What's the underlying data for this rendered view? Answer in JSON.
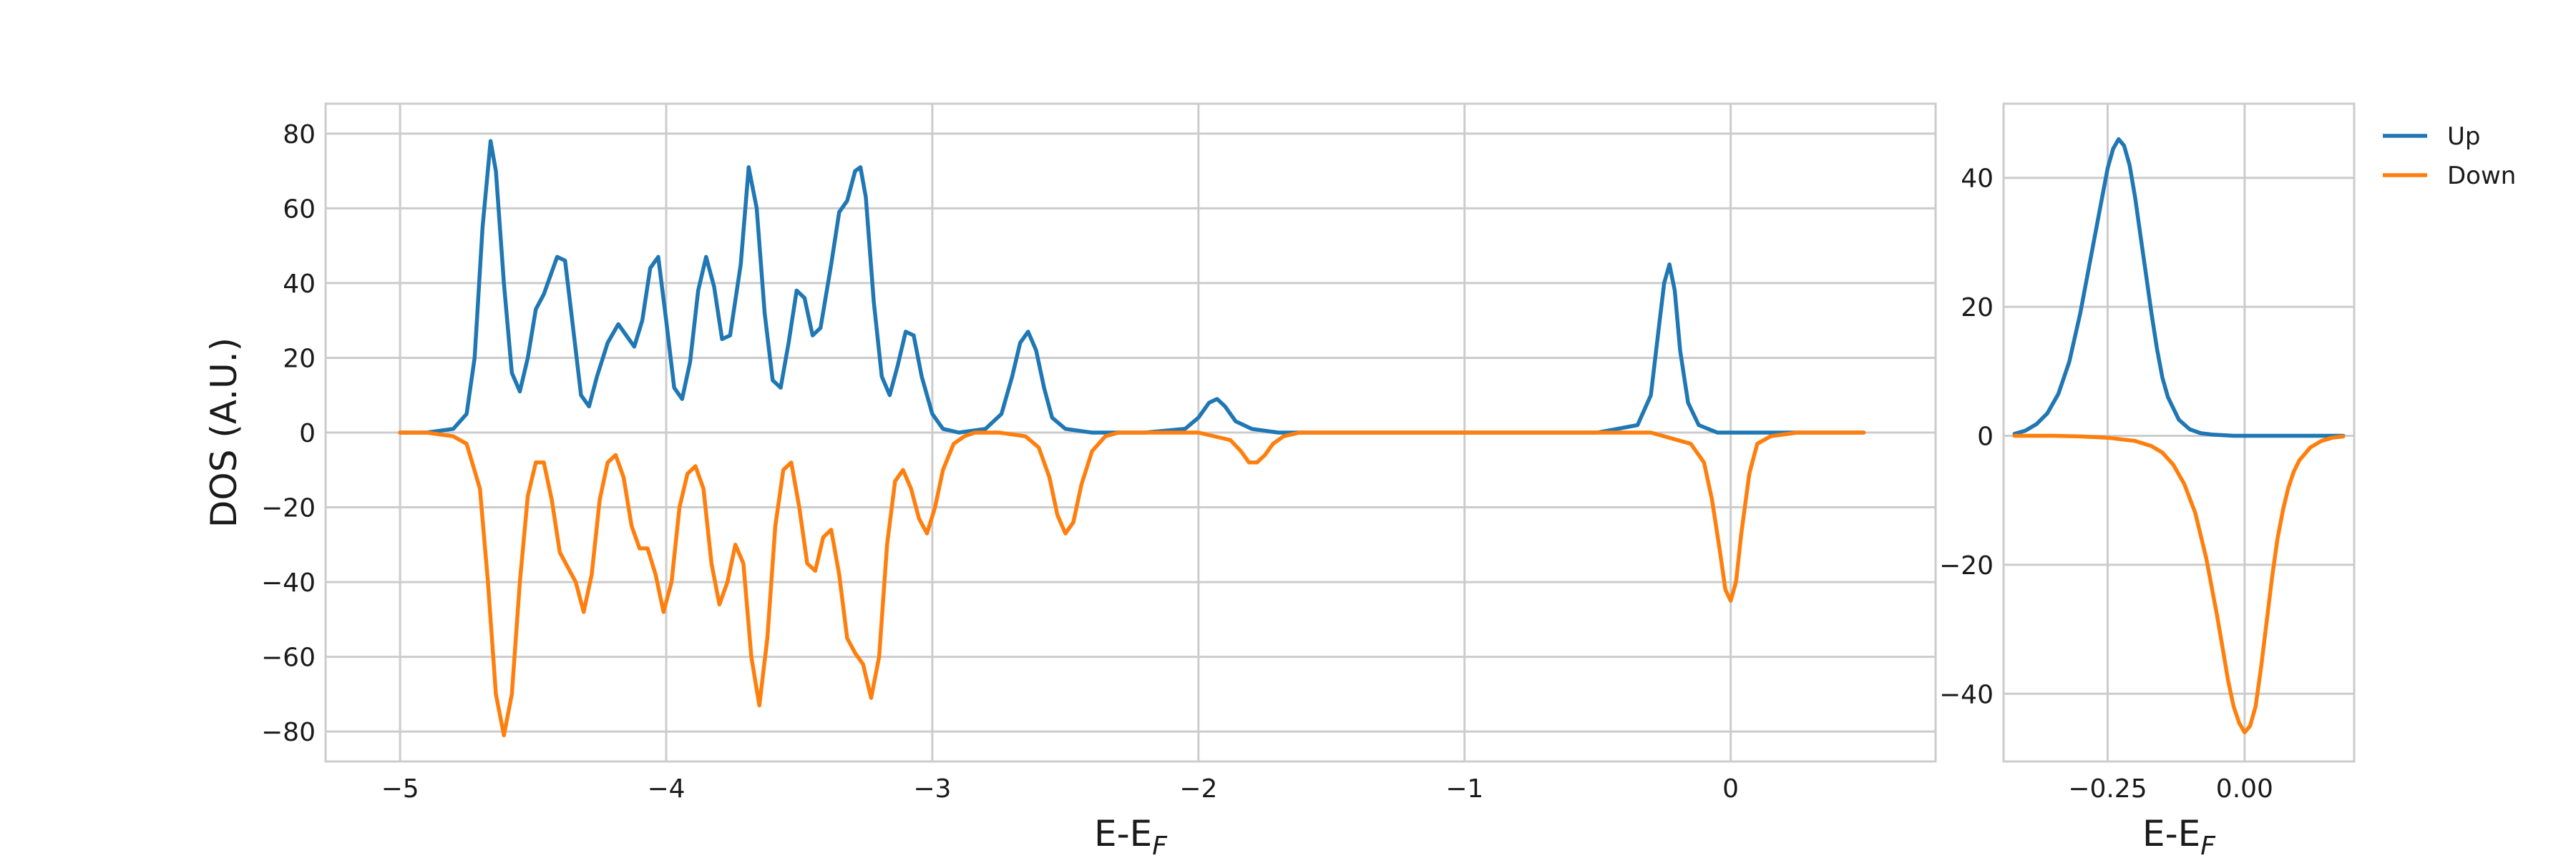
{
  "chart_data": [
    {
      "type": "line",
      "title": "",
      "xlabel": "E-E",
      "xlabel_subscript": "F",
      "ylabel": "DOS (A.U.)",
      "xlim": [
        -5.28,
        0.77
      ],
      "ylim": [
        -88,
        88
      ],
      "xticks": [
        -5,
        -4,
        -3,
        -2,
        -1,
        0
      ],
      "xtick_labels": [
        "−5",
        "−4",
        "−3",
        "−2",
        "−1",
        "0"
      ],
      "yticks": [
        80,
        60,
        40,
        20,
        0,
        -20,
        -40,
        -60,
        -80
      ],
      "ytick_labels": [
        "80",
        "60",
        "40",
        "20",
        "0",
        "−20",
        "−40",
        "−60",
        "−80"
      ],
      "grid": true,
      "series": [
        {
          "name": "Up",
          "color": "#1f77b4",
          "x": [
            -5.0,
            -4.9,
            -4.8,
            -4.75,
            -4.72,
            -4.69,
            -4.66,
            -4.64,
            -4.61,
            -4.58,
            -4.55,
            -4.52,
            -4.49,
            -4.46,
            -4.44,
            -4.41,
            -4.38,
            -4.35,
            -4.32,
            -4.29,
            -4.26,
            -4.22,
            -4.18,
            -4.15,
            -4.12,
            -4.09,
            -4.06,
            -4.03,
            -4.0,
            -3.97,
            -3.94,
            -3.91,
            -3.88,
            -3.85,
            -3.82,
            -3.79,
            -3.76,
            -3.72,
            -3.69,
            -3.66,
            -3.63,
            -3.6,
            -3.57,
            -3.54,
            -3.51,
            -3.48,
            -3.45,
            -3.42,
            -3.38,
            -3.35,
            -3.32,
            -3.29,
            -3.27,
            -3.25,
            -3.22,
            -3.19,
            -3.16,
            -3.13,
            -3.1,
            -3.07,
            -3.04,
            -3.0,
            -2.96,
            -2.9,
            -2.8,
            -2.74,
            -2.7,
            -2.67,
            -2.64,
            -2.61,
            -2.58,
            -2.55,
            -2.5,
            -2.4,
            -2.2,
            -2.05,
            -2.0,
            -1.96,
            -1.93,
            -1.9,
            -1.86,
            -1.8,
            -1.7,
            -1.5,
            -1.0,
            -0.5,
            -0.35,
            -0.3,
            -0.27,
            -0.25,
            -0.23,
            -0.21,
            -0.19,
            -0.16,
            -0.12,
            -0.05,
            0.1,
            0.3,
            0.5
          ],
          "values": [
            0,
            0,
            1,
            5,
            20,
            55,
            78,
            70,
            40,
            16,
            11,
            20,
            33,
            37,
            41,
            47,
            46,
            28,
            10,
            7,
            15,
            24,
            29,
            26,
            23,
            30,
            44,
            47,
            30,
            12,
            9,
            19,
            38,
            47,
            39,
            25,
            26,
            45,
            71,
            60,
            32,
            14,
            12,
            24,
            38,
            36,
            26,
            28,
            45,
            59,
            62,
            70,
            71,
            63,
            35,
            15,
            10,
            18,
            27,
            26,
            15,
            5,
            1,
            0,
            1,
            5,
            15,
            24,
            27,
            22,
            12,
            4,
            1,
            0,
            0,
            1,
            4,
            8,
            9,
            7,
            3,
            1,
            0,
            0,
            0,
            0,
            2,
            10,
            28,
            40,
            45,
            38,
            22,
            8,
            2,
            0,
            0,
            0,
            0
          ]
        },
        {
          "name": "Down",
          "color": "#ff7f0e",
          "x": [
            -5.0,
            -4.9,
            -4.8,
            -4.75,
            -4.7,
            -4.67,
            -4.64,
            -4.61,
            -4.58,
            -4.55,
            -4.52,
            -4.49,
            -4.46,
            -4.43,
            -4.4,
            -4.37,
            -4.34,
            -4.31,
            -4.28,
            -4.25,
            -4.22,
            -4.19,
            -4.16,
            -4.13,
            -4.1,
            -4.07,
            -4.04,
            -4.01,
            -3.98,
            -3.95,
            -3.92,
            -3.89,
            -3.86,
            -3.83,
            -3.8,
            -3.77,
            -3.74,
            -3.71,
            -3.68,
            -3.65,
            -3.62,
            -3.59,
            -3.56,
            -3.53,
            -3.5,
            -3.47,
            -3.44,
            -3.41,
            -3.38,
            -3.35,
            -3.32,
            -3.29,
            -3.26,
            -3.23,
            -3.2,
            -3.17,
            -3.14,
            -3.11,
            -3.08,
            -3.05,
            -3.02,
            -2.99,
            -2.96,
            -2.92,
            -2.88,
            -2.84,
            -2.75,
            -2.65,
            -2.6,
            -2.56,
            -2.53,
            -2.5,
            -2.47,
            -2.44,
            -2.4,
            -2.35,
            -2.3,
            -2.0,
            -1.88,
            -1.84,
            -1.81,
            -1.78,
            -1.75,
            -1.72,
            -1.68,
            -1.62,
            -1.5,
            -1.0,
            -0.3,
            -0.15,
            -0.1,
            -0.07,
            -0.04,
            -0.02,
            0.0,
            0.02,
            0.04,
            0.07,
            0.1,
            0.15,
            0.25,
            0.5
          ],
          "values": [
            0,
            0,
            -1,
            -3,
            -15,
            -40,
            -70,
            -81,
            -70,
            -40,
            -17,
            -8,
            -8,
            -18,
            -32,
            -36,
            -40,
            -48,
            -38,
            -18,
            -8,
            -6,
            -12,
            -25,
            -31,
            -31,
            -38,
            -48,
            -40,
            -20,
            -11,
            -9,
            -15,
            -35,
            -46,
            -40,
            -30,
            -35,
            -60,
            -73,
            -55,
            -25,
            -10,
            -8,
            -20,
            -35,
            -37,
            -28,
            -26,
            -38,
            -55,
            -59,
            -62,
            -71,
            -60,
            -30,
            -13,
            -10,
            -15,
            -23,
            -27,
            -20,
            -10,
            -3,
            -1,
            0,
            0,
            -1,
            -4,
            -12,
            -22,
            -27,
            -24,
            -14,
            -5,
            -1,
            0,
            0,
            -2,
            -5,
            -8,
            -8,
            -6,
            -3,
            -1,
            0,
            0,
            0,
            0,
            -3,
            -8,
            -18,
            -32,
            -42,
            -45,
            -40,
            -27,
            -11,
            -3,
            -1,
            0,
            0
          ]
        }
      ]
    },
    {
      "type": "line",
      "title": "",
      "xlabel": "E-E",
      "xlabel_subscript": "F",
      "ylabel": "",
      "xlim": [
        -0.44,
        0.2
      ],
      "ylim": [
        -50.5,
        51.5
      ],
      "xticks": [
        -0.25,
        0.0
      ],
      "xtick_labels": [
        "−0.25",
        "0.00"
      ],
      "yticks": [
        40,
        20,
        0,
        -20,
        -40
      ],
      "ytick_labels": [
        "40",
        "20",
        "0",
        "−20",
        "−40"
      ],
      "grid": true,
      "series": [
        {
          "name": "Up",
          "color": "#1f77b4",
          "x": [
            -0.42,
            -0.4,
            -0.38,
            -0.36,
            -0.34,
            -0.32,
            -0.3,
            -0.28,
            -0.26,
            -0.25,
            -0.24,
            -0.23,
            -0.22,
            -0.21,
            -0.2,
            -0.19,
            -0.18,
            -0.17,
            -0.16,
            -0.15,
            -0.14,
            -0.12,
            -0.1,
            -0.08,
            -0.06,
            -0.04,
            -0.02,
            0.0,
            0.05,
            0.1,
            0.15,
            0.18
          ],
          "values": [
            0.3,
            0.8,
            1.8,
            3.5,
            6.5,
            11.5,
            19,
            28,
            37,
            41.5,
            44.5,
            46,
            45,
            42,
            37,
            31,
            25,
            19,
            13.5,
            9,
            6,
            2.5,
            1,
            0.4,
            0.2,
            0.1,
            0,
            0,
            0,
            0,
            0,
            0
          ]
        },
        {
          "name": "Down",
          "color": "#ff7f0e",
          "x": [
            -0.42,
            -0.35,
            -0.3,
            -0.25,
            -0.2,
            -0.17,
            -0.15,
            -0.13,
            -0.11,
            -0.09,
            -0.07,
            -0.05,
            -0.04,
            -0.03,
            -0.02,
            -0.01,
            0.0,
            0.01,
            0.02,
            0.03,
            0.04,
            0.05,
            0.06,
            0.07,
            0.08,
            0.09,
            0.1,
            0.12,
            0.14,
            0.16,
            0.18
          ],
          "values": [
            0,
            0,
            -0.1,
            -0.3,
            -0.8,
            -1.6,
            -2.6,
            -4.5,
            -7.5,
            -12,
            -19,
            -28,
            -33,
            -38,
            -42,
            -44.5,
            -46,
            -45,
            -42,
            -36,
            -29,
            -22,
            -16,
            -11.5,
            -8,
            -5.5,
            -3.8,
            -1.8,
            -0.8,
            -0.3,
            -0.1
          ]
        }
      ]
    }
  ],
  "legend": {
    "placement": "outside-top-right",
    "entries": [
      {
        "label": "Up",
        "color": "#1f77b4"
      },
      {
        "label": "Down",
        "color": "#ff7f0e"
      }
    ]
  }
}
